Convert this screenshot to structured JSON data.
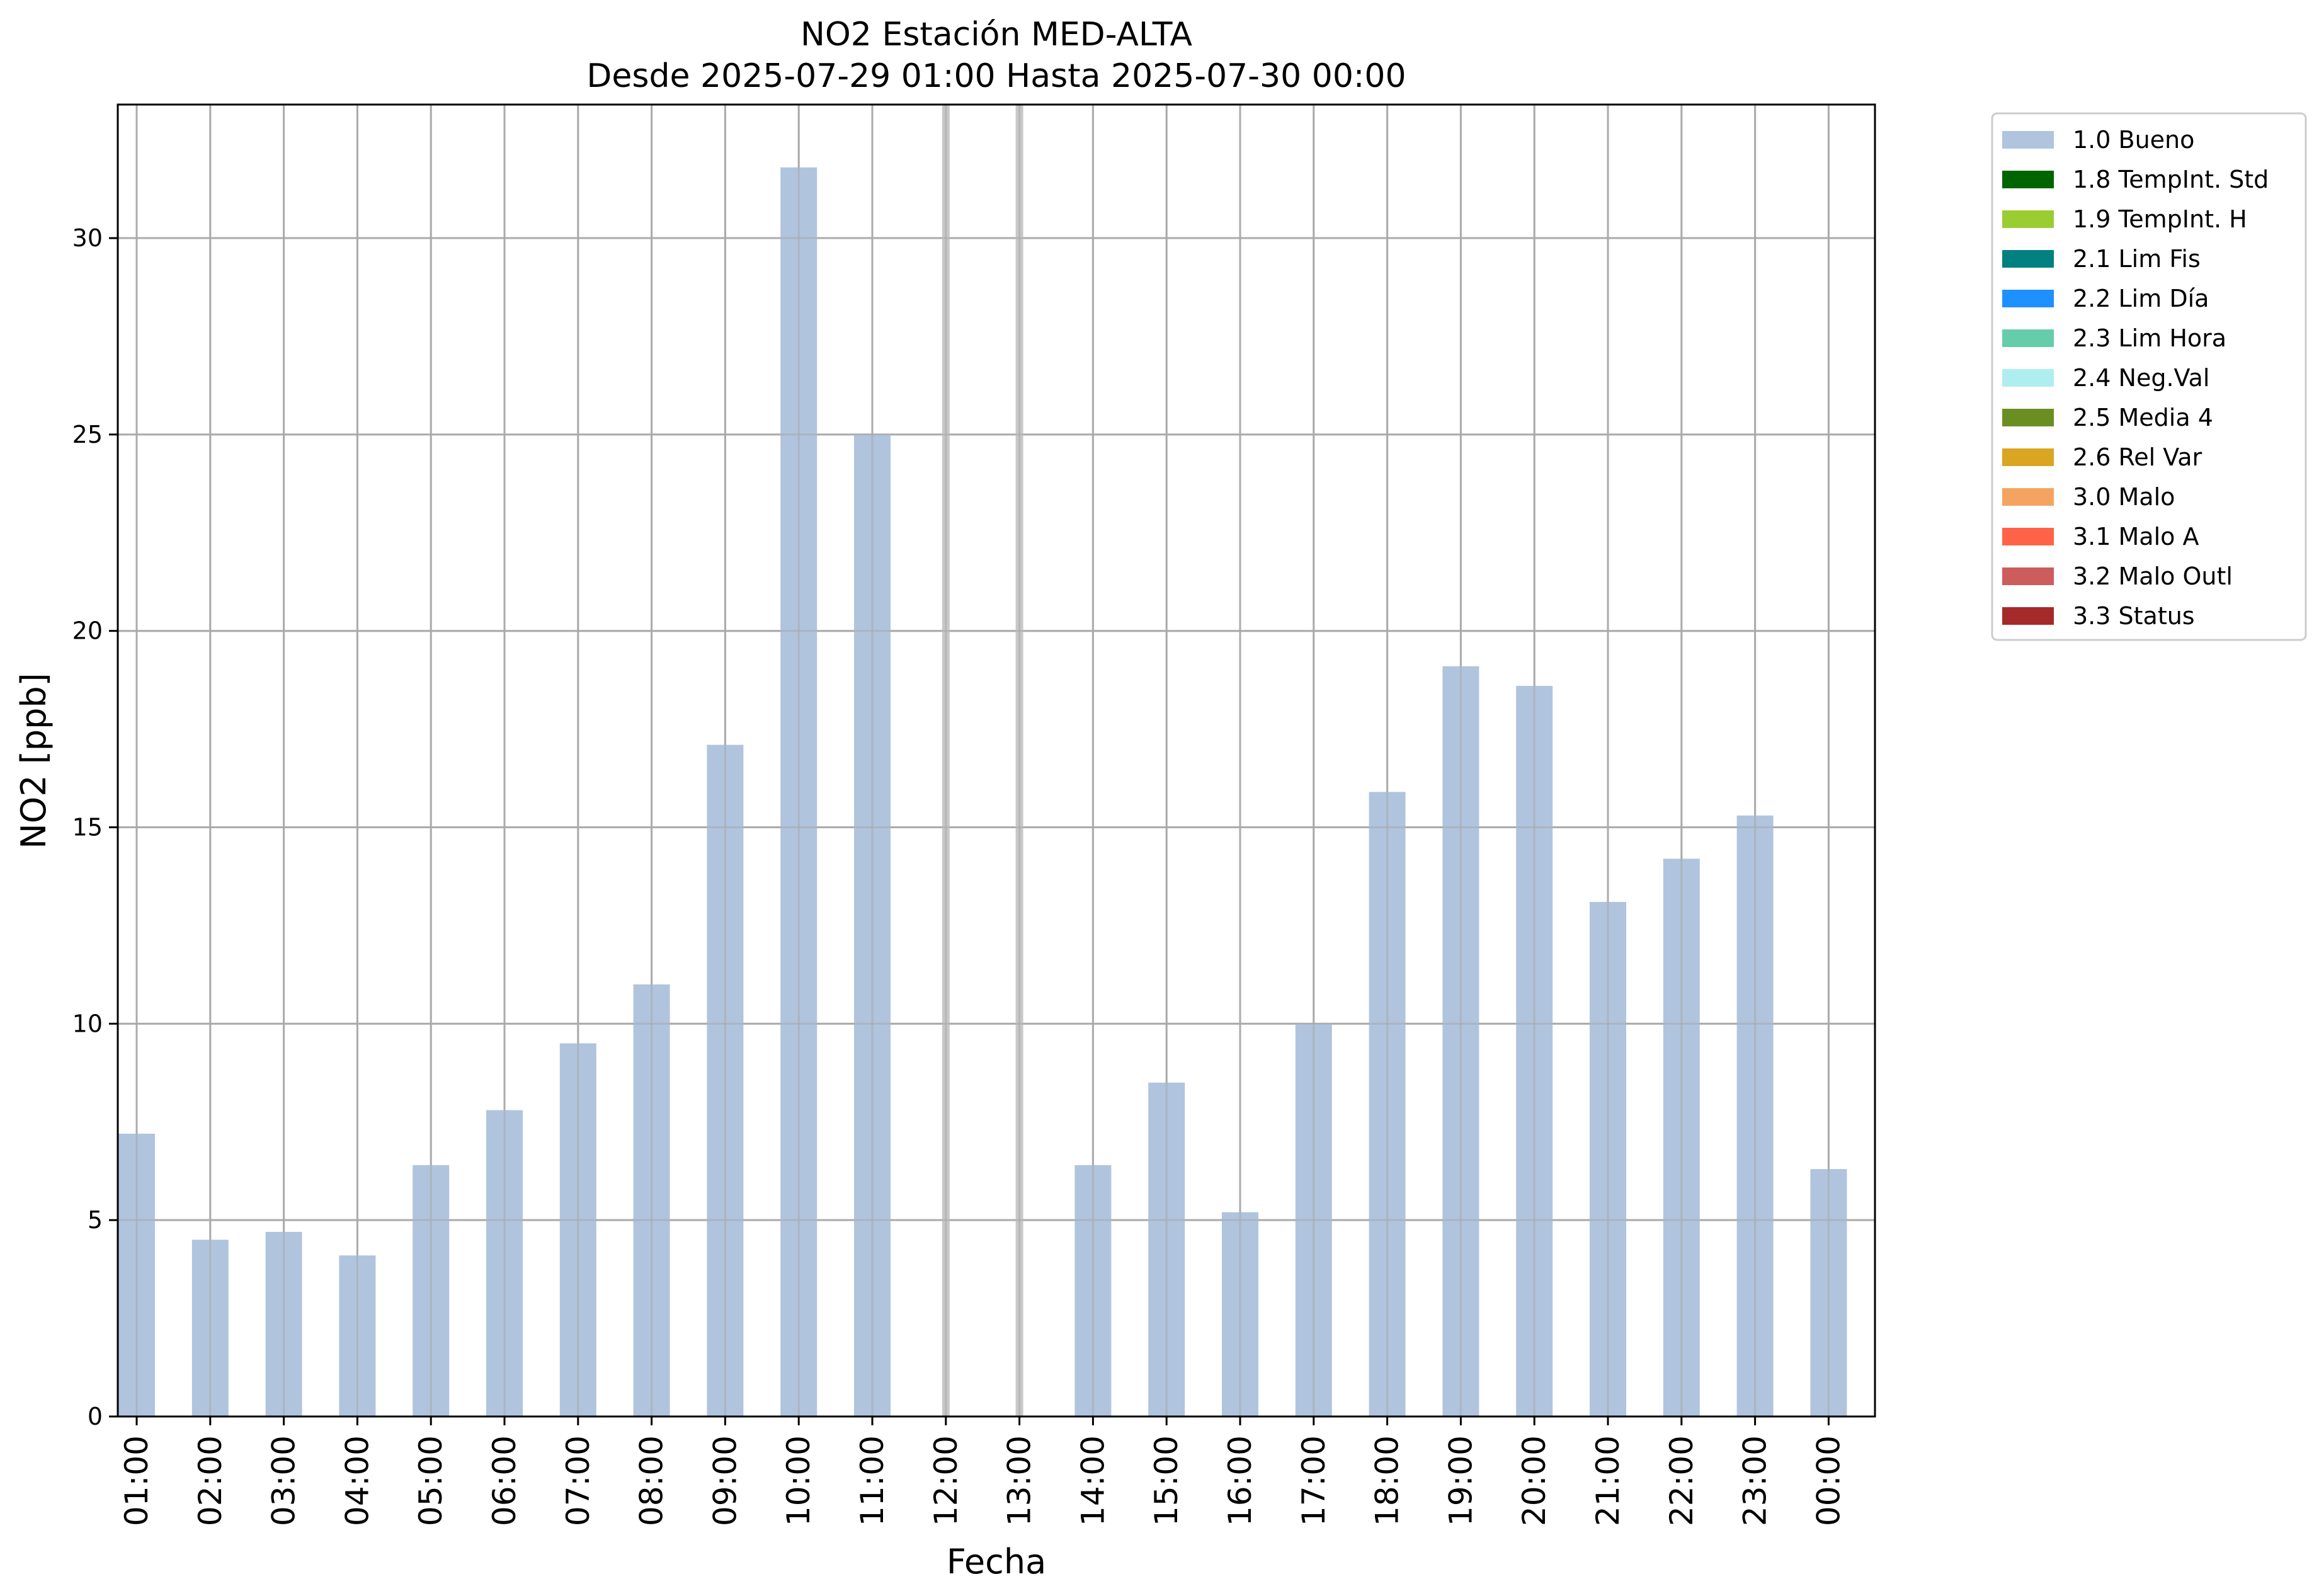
{
  "chart_data": {
    "type": "bar",
    "title": "NO2 Estación MED-ALTA",
    "subtitle": "Desde 2025-07-29 01:00 Hasta 2025-07-30 00:00",
    "xlabel": "Fecha",
    "ylabel": "NO2 [ppb]",
    "ylim": [
      0,
      33.4
    ],
    "yticks": [
      0,
      5,
      10,
      15,
      20,
      25,
      30
    ],
    "grid": true,
    "legend_position": "outside-top-right",
    "categories": [
      "01:00",
      "02:00",
      "03:00",
      "04:00",
      "05:00",
      "06:00",
      "07:00",
      "08:00",
      "09:00",
      "10:00",
      "11:00",
      "12:00",
      "13:00",
      "14:00",
      "15:00",
      "16:00",
      "17:00",
      "18:00",
      "19:00",
      "20:00",
      "21:00",
      "22:00",
      "23:00",
      "00:00"
    ],
    "series": [
      {
        "name": "1.0 Bueno",
        "color": "#b0c4de",
        "values": [
          7.2,
          4.5,
          4.7,
          4.1,
          6.4,
          7.8,
          9.5,
          11.0,
          17.1,
          31.8,
          25.0,
          null,
          null,
          6.4,
          8.5,
          5.2,
          10.0,
          15.9,
          19.1,
          18.6,
          13.1,
          14.2,
          15.3,
          6.3
        ]
      }
    ],
    "missing_markers": [
      "12:00",
      "13:00"
    ],
    "legend": [
      {
        "label": "1.0 Bueno",
        "color": "#b0c4de"
      },
      {
        "label": "1.8 TempInt. Std",
        "color": "#006400"
      },
      {
        "label": "1.9 TempInt. H",
        "color": "#9acd32"
      },
      {
        "label": "2.1 Lim Fis",
        "color": "#008080"
      },
      {
        "label": "2.2 Lim Día",
        "color": "#1e90ff"
      },
      {
        "label": "2.3 Lim Hora",
        "color": "#66cdaa"
      },
      {
        "label": "2.4 Neg.Val",
        "color": "#afeeee"
      },
      {
        "label": "2.5 Media 4",
        "color": "#6b8e23"
      },
      {
        "label": "2.6 Rel Var",
        "color": "#daa520"
      },
      {
        "label": "3.0 Malo",
        "color": "#f4a460"
      },
      {
        "label": "3.1 Malo A",
        "color": "#ff6347"
      },
      {
        "label": "3.2 Malo Outl",
        "color": "#cd5c5c"
      },
      {
        "label": "3.3 Status",
        "color": "#a52a2a"
      }
    ]
  }
}
